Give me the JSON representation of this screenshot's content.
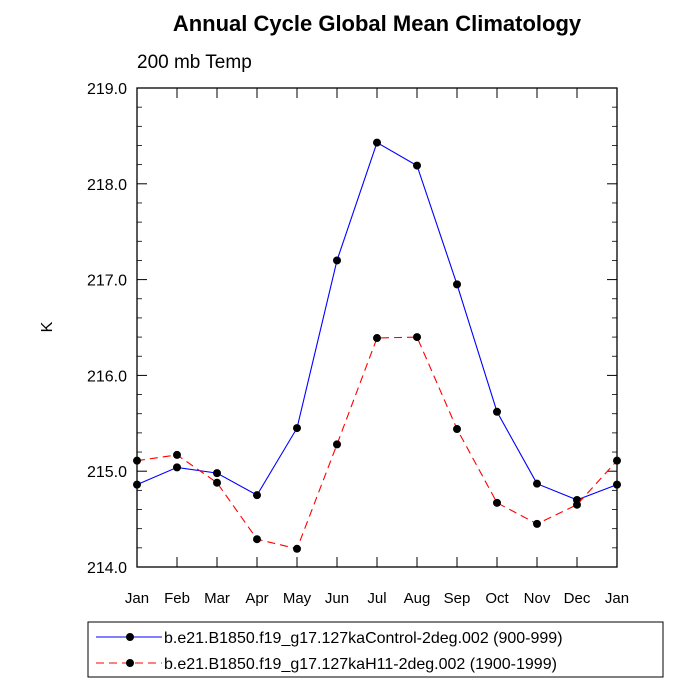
{
  "chart_data": {
    "type": "line",
    "title": "Annual Cycle Global Mean Climatology",
    "subtitle": "200 mb Temp",
    "xlabel": "",
    "ylabel": "K",
    "categories": [
      "Jan",
      "Feb",
      "Mar",
      "Apr",
      "May",
      "Jun",
      "Jul",
      "Aug",
      "Sep",
      "Oct",
      "Nov",
      "Dec",
      "Jan"
    ],
    "ylim": [
      214.0,
      219.0
    ],
    "yticks": [
      214.0,
      215.0,
      216.0,
      217.0,
      218.0,
      219.0
    ],
    "ytick_labels": [
      "214.0",
      "215.0",
      "216.0",
      "217.0",
      "218.0",
      "219.0"
    ],
    "grid": false,
    "legend_position": "bottom",
    "series": [
      {
        "name": "b.e21.B1850.f19_g17.127kaControl-2deg.002 (900-999)",
        "color": "#0000ff",
        "dash": "solid",
        "values": [
          214.86,
          215.04,
          214.98,
          214.75,
          215.45,
          217.2,
          218.43,
          218.19,
          216.95,
          215.62,
          214.87,
          214.7,
          214.86
        ]
      },
      {
        "name": "b.e21.B1850.f19_g17.127kaH11-2deg.002 (1900-1999)",
        "color": "#ff0000",
        "dash": "dashed",
        "values": [
          215.11,
          215.17,
          214.88,
          214.29,
          214.19,
          215.28,
          216.39,
          216.4,
          215.44,
          214.67,
          214.45,
          214.65,
          215.11
        ]
      }
    ]
  }
}
